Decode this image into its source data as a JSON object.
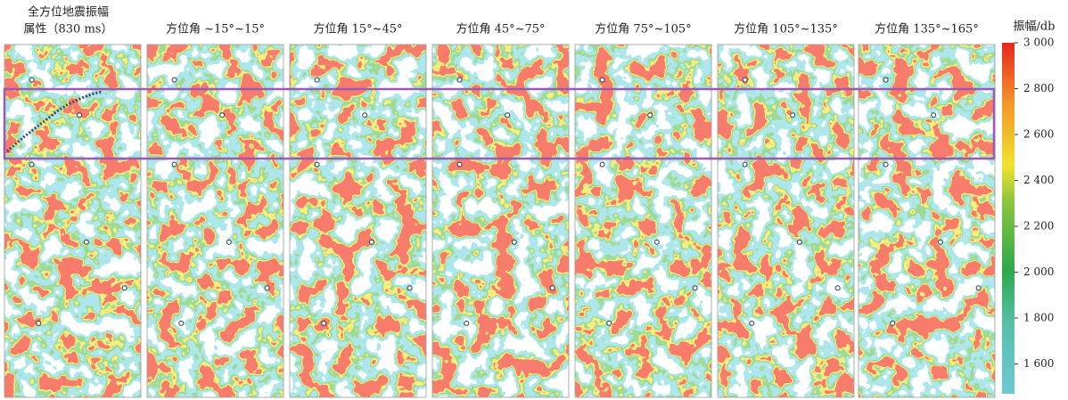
{
  "panels": [
    {
      "title": "全方位地震振幅",
      "subtitle": "属性（830 ms）"
    },
    {
      "title": "方位角 ~15°~15°"
    },
    {
      "title": "方位角 15°~45°"
    },
    {
      "title": "方位角 45°~75°"
    },
    {
      "title": "方位角 75°~105°"
    },
    {
      "title": "方位角 105°~135°"
    },
    {
      "title": "方位角 135°~165°"
    }
  ],
  "colorbar": {
    "label": "振幅/db",
    "range": [
      1470,
      3000
    ],
    "ticks": [
      {
        "value": 3000,
        "label": "3 000"
      },
      {
        "value": 2800,
        "label": "2 800"
      },
      {
        "value": 2600,
        "label": "2 600"
      },
      {
        "value": 2400,
        "label": "2 400"
      },
      {
        "value": 2200,
        "label": "2 200"
      },
      {
        "value": 2000,
        "label": "2 000"
      },
      {
        "value": 1800,
        "label": "1 800"
      },
      {
        "value": 1600,
        "label": "1 600"
      }
    ]
  }
}
